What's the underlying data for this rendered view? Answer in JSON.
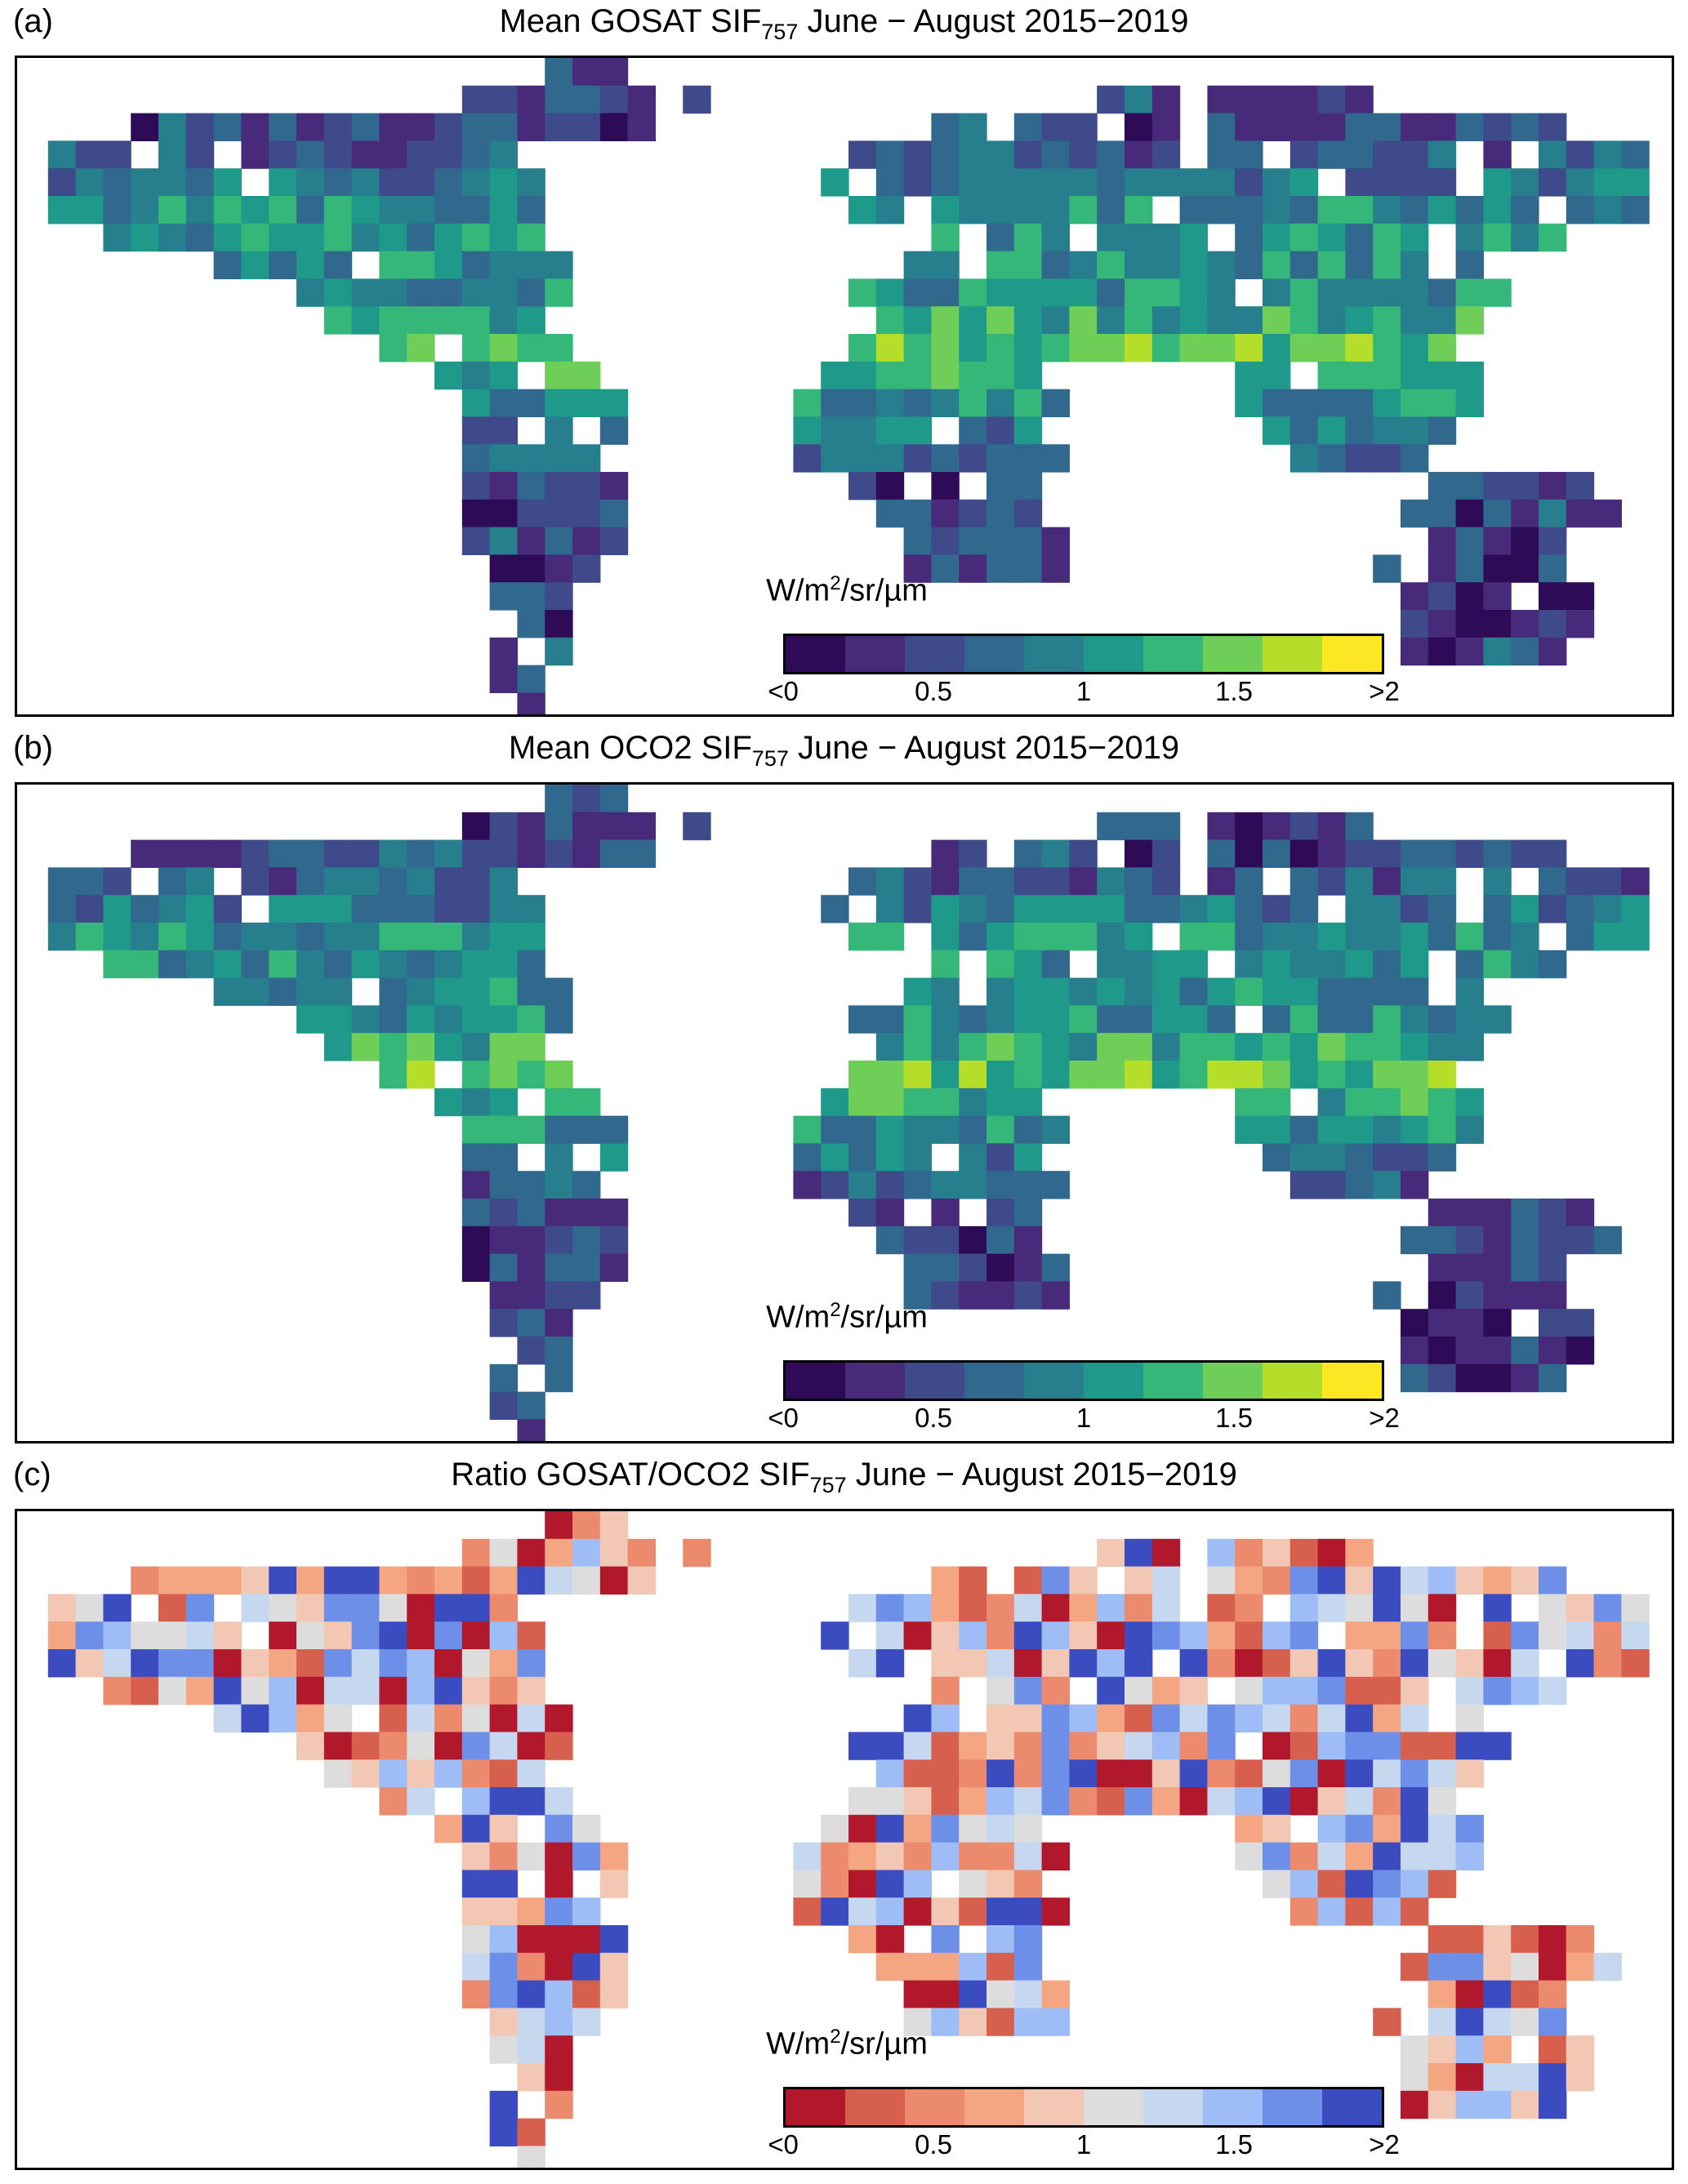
{
  "panels": [
    {
      "label": "(a)",
      "title_main": "Mean GOSAT SIF",
      "title_sub": "757",
      "title_rest": " June − August 2015−2019",
      "colorbar": {
        "unit_prefix": "W/m",
        "unit_sup": "2",
        "unit_suffix": "/sr/µm",
        "ticks": [
          "<0",
          "0.5",
          "1",
          "1.5",
          ">2"
        ],
        "colors": [
          "#2e0b57",
          "#472a7a",
          "#3e4a89",
          "#31688e",
          "#277f8e",
          "#1f9a8a",
          "#35b779",
          "#6ece58",
          "#b5de2b",
          "#fde725"
        ]
      }
    },
    {
      "label": "(b)",
      "title_main": "Mean OCO2 SIF",
      "title_sub": "757",
      "title_rest": " June − August 2015−2019",
      "colorbar": {
        "unit_prefix": "W/m",
        "unit_sup": "2",
        "unit_suffix": "/sr/µm",
        "ticks": [
          "<0",
          "0.5",
          "1",
          "1.5",
          ">2"
        ],
        "colors": [
          "#2e0b57",
          "#472a7a",
          "#3e4a89",
          "#31688e",
          "#277f8e",
          "#1f9a8a",
          "#35b779",
          "#6ece58",
          "#b5de2b",
          "#fde725"
        ]
      }
    },
    {
      "label": "(c)",
      "title_main": "Ratio GOSAT/OCO2 SIF",
      "title_sub": "757",
      "title_rest": " June − August 2015−2019",
      "colorbar": {
        "unit_prefix": "W/m",
        "unit_sup": "2",
        "unit_suffix": "/sr/µm",
        "ticks": [
          "<0",
          "0.5",
          "1",
          "1.5",
          ">2"
        ],
        "colors": [
          "#b2182b",
          "#d6604d",
          "#ec8a6e",
          "#f4a582",
          "#f2c7b3",
          "#dddddd",
          "#c6d7f0",
          "#9ebcf5",
          "#6d8fe8",
          "#3b4cc0"
        ]
      }
    }
  ]
}
